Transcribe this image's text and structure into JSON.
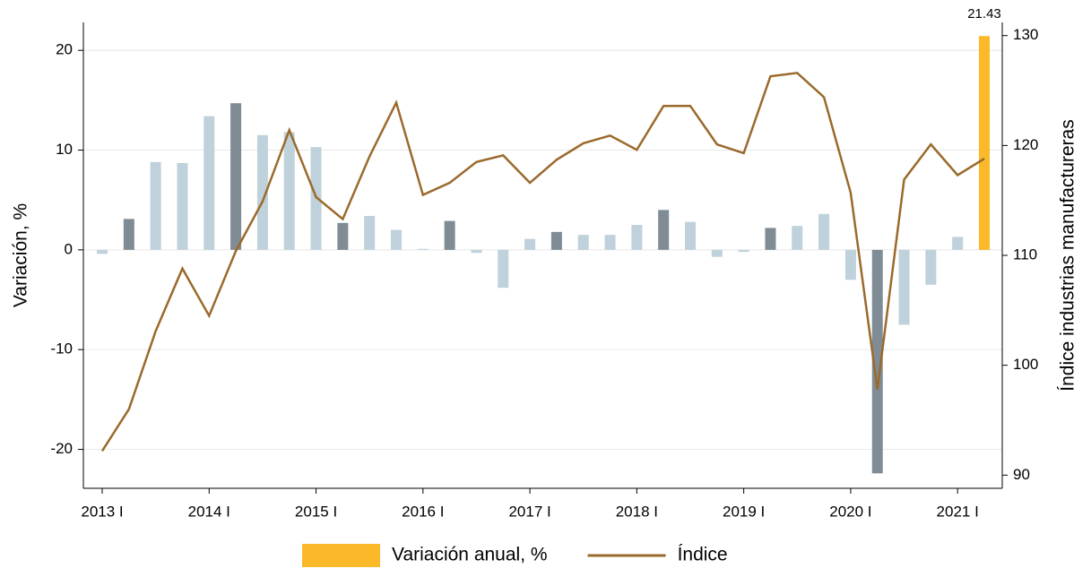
{
  "chart_data": {
    "type": "bar-line",
    "categories": [
      "2013 I",
      null,
      null,
      null,
      "2014 I",
      null,
      null,
      null,
      "2015 I",
      null,
      null,
      null,
      "2016 I",
      null,
      null,
      null,
      "2017 I",
      null,
      null,
      null,
      "2018 I",
      null,
      null,
      null,
      "2019 I",
      null,
      null,
      null,
      "2020 I",
      null,
      null,
      null,
      "2021 I",
      null
    ],
    "series": [
      {
        "name": "Variación anual, %",
        "type": "bar",
        "color": "#fbb829",
        "colors": [
          "#bfd1da",
          "#7f8c95",
          "#bfd1da",
          "#bfd1da",
          "#bfd1da",
          "#7f8c95",
          "#bfd1da",
          "#bfd1da",
          "#bfd1da",
          "#7f8c95",
          "#bfd1da",
          "#bfd1da",
          "#bfd1da",
          "#7f8c95",
          "#bfd1da",
          "#bfd1da",
          "#bfd1da",
          "#7f8c95",
          "#bfd1da",
          "#bfd1da",
          "#bfd1da",
          "#7f8c95",
          "#bfd1da",
          "#bfd1da",
          "#bfd1da",
          "#7f8c95",
          "#bfd1da",
          "#bfd1da",
          "#bfd1da",
          "#7f8c95",
          "#bfd1da",
          "#bfd1da",
          "#bfd1da",
          "#fbb829"
        ],
        "values": [
          -0.4,
          3.1,
          8.8,
          8.7,
          13.4,
          14.7,
          11.5,
          11.8,
          10.3,
          2.7,
          3.4,
          2.0,
          0.1,
          2.9,
          -0.3,
          -3.8,
          1.1,
          1.8,
          1.5,
          1.5,
          2.5,
          4.0,
          2.8,
          -0.7,
          -0.2,
          2.2,
          2.4,
          3.6,
          -3.0,
          -22.4,
          -7.5,
          -3.5,
          1.3,
          21.43
        ],
        "value_labels": [
          null,
          null,
          null,
          null,
          null,
          null,
          null,
          null,
          null,
          null,
          null,
          null,
          null,
          null,
          null,
          null,
          null,
          null,
          null,
          null,
          null,
          null,
          null,
          null,
          null,
          null,
          null,
          null,
          null,
          null,
          null,
          null,
          null,
          "21.43"
        ]
      },
      {
        "name": "Índice",
        "type": "line",
        "axis": "y2",
        "color": "#9a6a2c",
        "values": [
          92.2,
          96.0,
          103.1,
          108.8,
          104.5,
          110.4,
          114.9,
          121.4,
          115.3,
          113.3,
          119.0,
          123.9,
          115.5,
          116.6,
          118.5,
          119.1,
          116.6,
          118.7,
          120.2,
          120.9,
          119.6,
          123.6,
          123.6,
          120.1,
          119.3,
          126.3,
          126.6,
          124.4,
          115.7,
          97.8,
          116.9,
          120.1,
          117.3,
          118.8
        ]
      }
    ],
    "y_label": "Variación, %",
    "y2_label": "Índice industrias manufactureras",
    "ylim": [
      -23.9,
      22.8
    ],
    "yticks": [
      -20,
      -10,
      0,
      10,
      20
    ],
    "y2lim": [
      88.8,
      131.2
    ],
    "y2ticks": [
      90,
      100,
      110,
      120,
      130
    ],
    "grid": true,
    "legend": "bottom"
  }
}
